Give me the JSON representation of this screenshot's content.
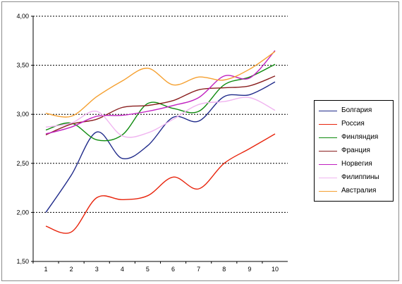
{
  "chart_data": {
    "type": "line",
    "x": [
      1,
      2,
      3,
      4,
      5,
      6,
      7,
      8,
      9,
      10
    ],
    "ylim": [
      1.5,
      4.0
    ],
    "yticks": [
      "1,50",
      "2,00",
      "2,50",
      "3,00",
      "3,50",
      "4,00"
    ],
    "ytick_values": [
      1.5,
      2.0,
      2.5,
      3.0,
      3.5,
      4.0
    ],
    "xticks": [
      "1",
      "2",
      "3",
      "4",
      "5",
      "6",
      "7",
      "8",
      "9",
      "10"
    ],
    "grid": true,
    "legend_position": "right",
    "series": [
      {
        "name": "Болгария",
        "color": "#1f2a8a",
        "values": [
          2.0,
          2.38,
          2.82,
          2.55,
          2.68,
          2.97,
          2.93,
          3.18,
          3.2,
          3.33
        ]
      },
      {
        "name": "Россия",
        "color": "#e8240c",
        "values": [
          1.86,
          1.8,
          2.15,
          2.13,
          2.17,
          2.36,
          2.24,
          2.5,
          2.65,
          2.8
        ]
      },
      {
        "name": "Финляндия",
        "color": "#0d8a0d",
        "values": [
          2.84,
          2.91,
          2.74,
          2.79,
          3.11,
          3.06,
          3.03,
          3.3,
          3.38,
          3.51
        ]
      },
      {
        "name": "Франция",
        "color": "#8a1f1f",
        "values": [
          2.79,
          2.9,
          2.95,
          3.07,
          3.09,
          3.14,
          3.25,
          3.27,
          3.29,
          3.39
        ]
      },
      {
        "name": "Норвегия",
        "color": "#c020c0",
        "values": [
          2.8,
          2.87,
          2.98,
          2.99,
          3.03,
          3.09,
          3.17,
          3.39,
          3.37,
          3.65
        ]
      },
      {
        "name": "Филиппины",
        "color": "#f0b4f0",
        "values": [
          2.87,
          2.91,
          3.03,
          2.78,
          2.81,
          2.95,
          3.1,
          3.13,
          3.17,
          3.04
        ]
      },
      {
        "name": "Австралия",
        "color": "#f5a030",
        "values": [
          3.01,
          2.98,
          3.18,
          3.34,
          3.47,
          3.3,
          3.38,
          3.35,
          3.46,
          3.64
        ]
      }
    ]
  }
}
